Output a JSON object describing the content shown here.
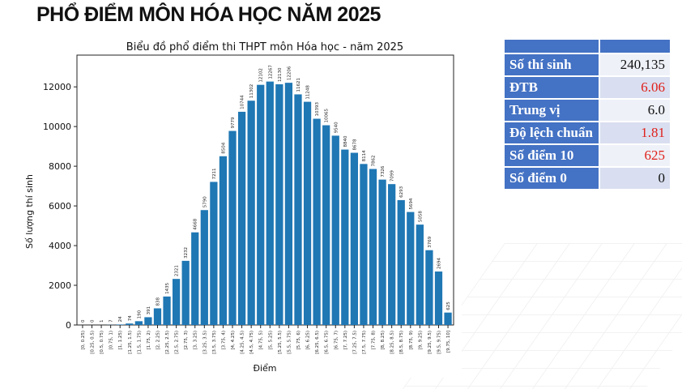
{
  "heading": "PHỔ ĐIỂM MÔN HÓA HỌC NĂM 2025",
  "stats_table": {
    "header": [
      "",
      ""
    ],
    "rows": [
      {
        "label": "Số thí sinh",
        "value": "240,135",
        "highlight": false
      },
      {
        "label": "ĐTB",
        "value": "6.06",
        "highlight": true
      },
      {
        "label": "Trung vị",
        "value": "6.0",
        "highlight": false
      },
      {
        "label": "Độ lệch chuẩn",
        "value": "1.81",
        "highlight": true
      },
      {
        "label": "Số điểm 10",
        "value": "625",
        "highlight": true
      },
      {
        "label": "Số điểm 0",
        "value": "0",
        "highlight": false
      }
    ],
    "colors": {
      "header": "#4472c4",
      "highlight": "#e0201b"
    }
  },
  "chart_data": {
    "type": "bar",
    "title": "Biểu đồ phổ điểm thi THPT môn Hóa học - năm 2025",
    "xlabel": "Điểm",
    "ylabel": "Số lượng thí sinh",
    "ylim": [
      0,
      13600
    ],
    "yticks": [
      0,
      2000,
      4000,
      6000,
      8000,
      10000,
      12000
    ],
    "grid": false,
    "bar_color": "#1f77b4",
    "categories": [
      "[0, 0.25)",
      "[0.25, 0.5)",
      "[0.5, 0.75)",
      "[0.75, 1)",
      "[1, 1.25)",
      "[1.25, 1.5)",
      "[1.5, 1.75)",
      "[1.75, 2)",
      "[2, 2.25)",
      "[2.25, 2.5)",
      "[2.5, 2.75)",
      "[2.75, 3)",
      "[3, 3.25)",
      "[3.25, 3.5)",
      "[3.5, 3.75)",
      "[3.75, 4)",
      "[4, 4.25)",
      "[4.25, 4.5)",
      "[4.5, 4.75)",
      "[4.75, 5)",
      "[5, 5.25)",
      "[5.25, 5.5)",
      "[5.5, 5.75)",
      "[5.75, 6)",
      "[6, 6.25)",
      "[6.25, 6.5)",
      "[6.5, 6.75)",
      "[6.75, 7)",
      "[7, 7.25)",
      "[7.25, 7.5)",
      "[7.5, 7.75)",
      "[7.75, 8)",
      "[8, 8.25)",
      "[8.25, 8.5)",
      "[8.5, 8.75)",
      "[8.75, 9)",
      "[9, 9.25)",
      "[9.25, 9.5)",
      "[9.5, 9.75)",
      "[9.75, 10]"
    ],
    "values": [
      0,
      0,
      1,
      7,
      24,
      74,
      190,
      391,
      838,
      1435,
      2321,
      3232,
      4668,
      5790,
      7211,
      8504,
      9779,
      10744,
      11302,
      12102,
      12267,
      12130,
      12206,
      11621,
      11248,
      10393,
      10065,
      9540,
      8840,
      8678,
      8114,
      7862,
      7326,
      7099,
      6293,
      5694,
      5058,
      3769,
      2694,
      625
    ]
  }
}
